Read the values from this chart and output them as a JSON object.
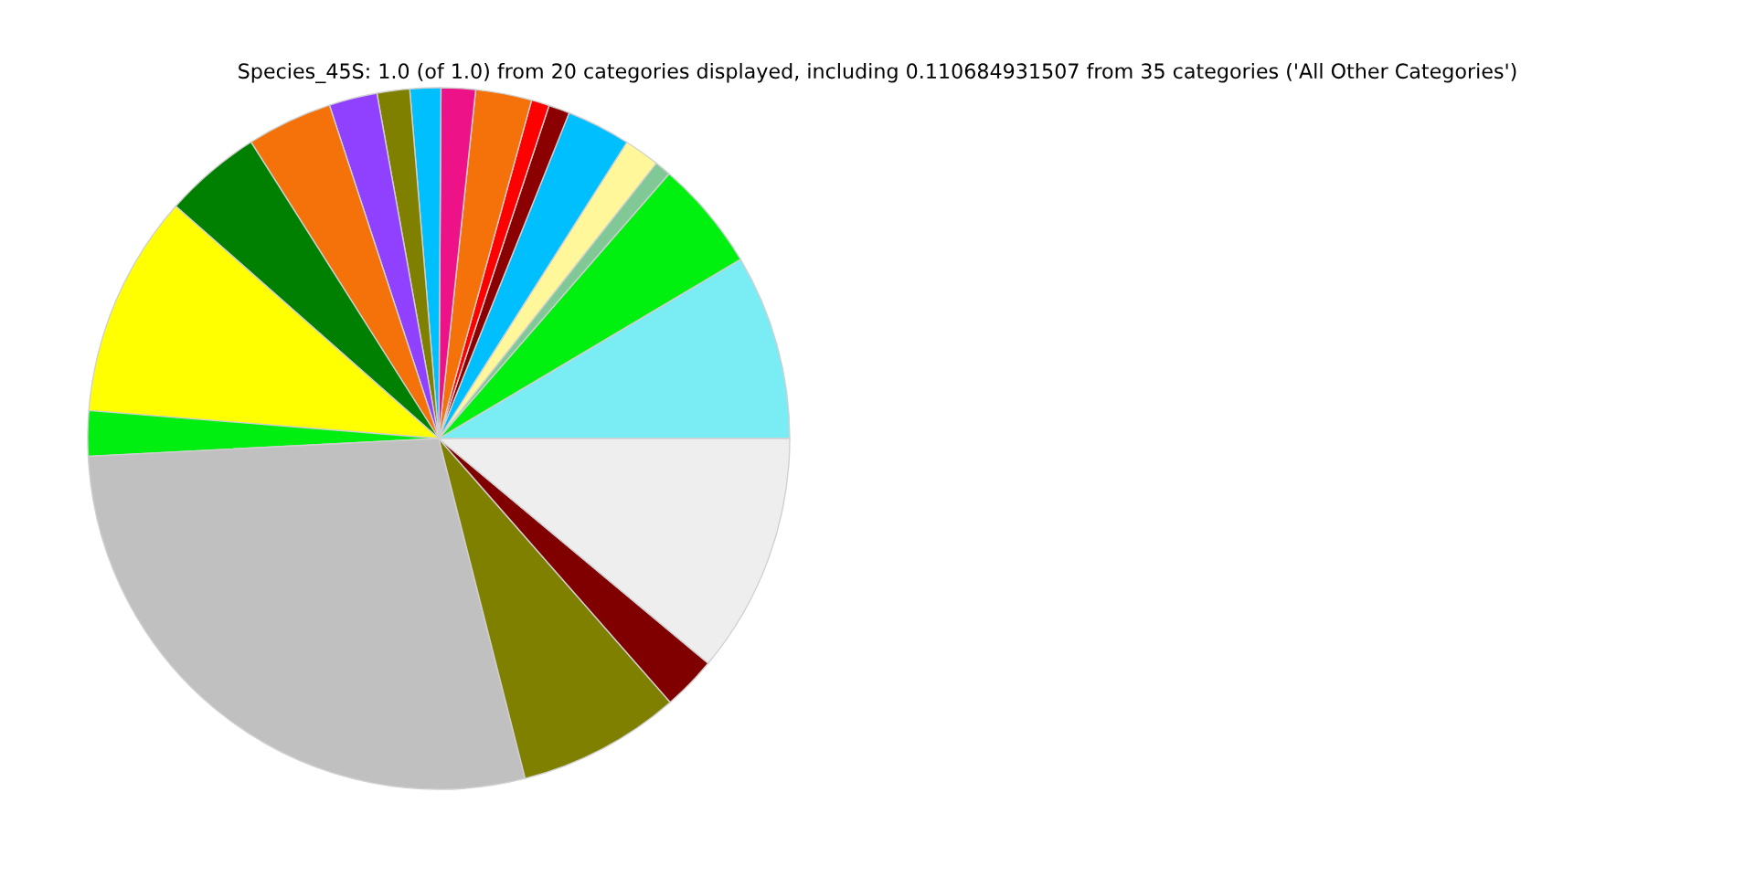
{
  "chart_data": {
    "type": "pie",
    "title": "Species_45S: 1.0 (of 1.0) from 20 categories displayed, including 0.110684931507 from 35 categories ('All Other Categories')",
    "categories": [
      null,
      null,
      null,
      null,
      null,
      null,
      null,
      null,
      null,
      null,
      null,
      null,
      null,
      null,
      null,
      null,
      null,
      null,
      null,
      null
    ],
    "values": [
      8.53,
      5.08,
      0.75,
      1.64,
      2.94,
      0.97,
      0.83,
      2.58,
      1.58,
      1.42,
      1.5,
      2.22,
      3.94,
      4.5,
      10.25,
      2.08,
      28.15,
      7.5,
      2.47,
      11.07
    ],
    "colors": [
      "#7aecf4",
      "#00f010",
      "#80c896",
      "#fff799",
      "#00bfff",
      "#8b0000",
      "#ff0000",
      "#f47209",
      "#ee1289",
      "#00bfff",
      "#808000",
      "#9040ff",
      "#f47209",
      "#008000",
      "#ffff00",
      "#00ee10",
      "#c0c0c0",
      "#808000",
      "#800000",
      "#eeeeee"
    ]
  }
}
